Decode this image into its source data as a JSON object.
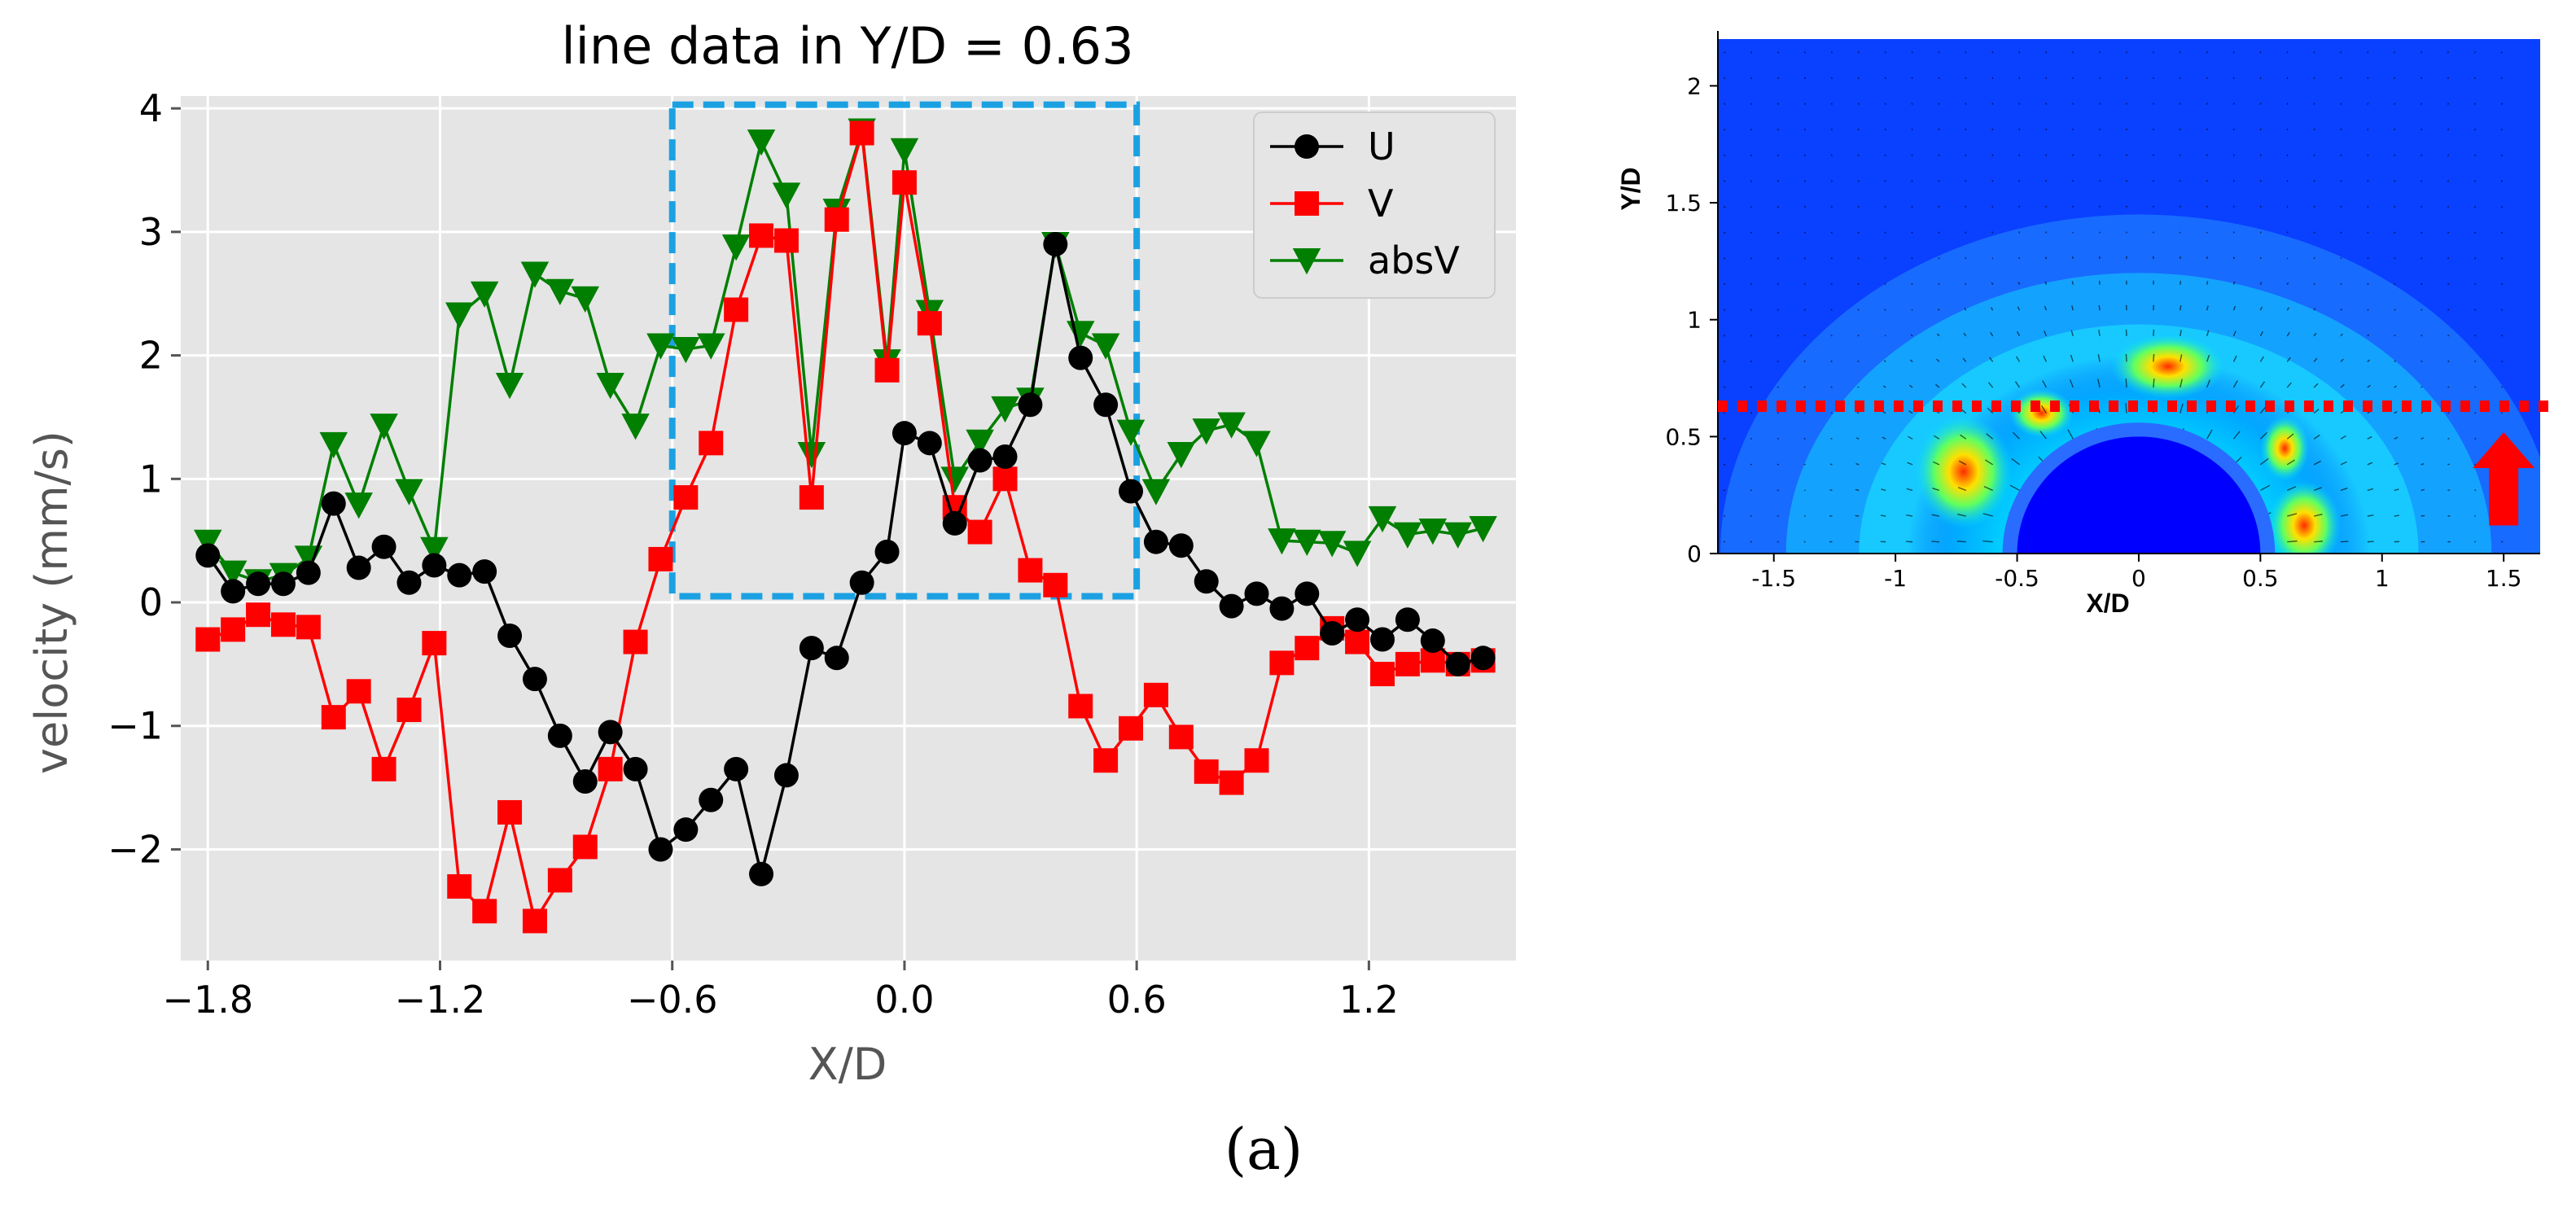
{
  "chart_data": [
    {
      "type": "line",
      "title": "line data in Y/D = 0.63",
      "xlabel": "X/D",
      "ylabel": "velocity (mm/s)",
      "xlim": [
        -1.87,
        1.58
      ],
      "ylim": [
        -2.9,
        4.1
      ],
      "xticks": [
        -1.8,
        -1.2,
        -0.6,
        0.0,
        0.6,
        1.2
      ],
      "xtick_labels": [
        "−1.8",
        "−1.2",
        "−0.6",
        "0.0",
        "0.6",
        "1.2"
      ],
      "yticks": [
        -2,
        -1,
        0,
        1,
        2,
        3,
        4
      ],
      "ytick_labels": [
        "−2",
        "−1",
        "0",
        "1",
        "2",
        "3",
        "4"
      ],
      "grid": true,
      "legend_position": "top-right",
      "x": [
        -1.8,
        -1.735,
        -1.67,
        -1.605,
        -1.54,
        -1.475,
        -1.41,
        -1.345,
        -1.28,
        -1.215,
        -1.15,
        -1.085,
        -1.02,
        -0.955,
        -0.89,
        -0.825,
        -0.76,
        -0.695,
        -0.63,
        -0.565,
        -0.5,
        -0.435,
        -0.37,
        -0.305,
        -0.24,
        -0.175,
        -0.11,
        -0.045,
        0.0,
        0.065,
        0.13,
        0.195,
        0.26,
        0.325,
        0.39,
        0.455,
        0.52,
        0.585,
        0.65,
        0.715,
        0.78,
        0.845,
        0.91,
        0.975,
        1.04,
        1.105,
        1.17,
        1.235,
        1.3,
        1.365,
        1.43,
        1.495
      ],
      "series": [
        {
          "name": "U",
          "color": "#000000",
          "marker": "circle",
          "values": [
            0.38,
            0.09,
            0.15,
            0.15,
            0.24,
            0.8,
            0.28,
            0.45,
            0.16,
            0.3,
            0.22,
            0.25,
            -0.27,
            -0.62,
            -1.08,
            -1.45,
            -1.05,
            -1.35,
            -2.0,
            -1.84,
            -1.6,
            -1.35,
            -2.2,
            -1.4,
            -0.37,
            -0.45,
            0.16,
            0.41,
            1.37,
            1.29,
            0.64,
            1.15,
            1.18,
            1.6,
            2.9,
            1.98,
            1.6,
            0.9,
            0.49,
            0.46,
            0.17,
            -0.03,
            0.07,
            -0.05,
            0.07,
            -0.25,
            -0.14,
            -0.3,
            -0.14,
            -0.31,
            -0.5,
            -0.45
          ]
        },
        {
          "name": "V",
          "color": "#ff0000",
          "marker": "square",
          "values": [
            -0.3,
            -0.22,
            -0.1,
            -0.18,
            -0.2,
            -0.93,
            -0.72,
            -1.35,
            -0.87,
            -0.33,
            -2.3,
            -2.5,
            -1.7,
            -2.58,
            -2.25,
            -1.98,
            -1.35,
            -0.32,
            0.35,
            0.85,
            1.29,
            2.37,
            2.97,
            2.93,
            0.85,
            3.1,
            3.8,
            1.88,
            3.4,
            2.26,
            0.77,
            0.57,
            1.0,
            0.26,
            0.14,
            -0.84,
            -1.28,
            -1.02,
            -0.75,
            -1.09,
            -1.37,
            -1.46,
            -1.28,
            -0.49,
            -0.37,
            -0.21,
            -0.32,
            -0.58,
            -0.5,
            -0.47,
            -0.5,
            -0.47
          ]
        },
        {
          "name": "absV",
          "color": "#007f00",
          "marker": "triangle-down",
          "values": [
            0.49,
            0.24,
            0.17,
            0.22,
            0.36,
            1.28,
            0.79,
            1.43,
            0.9,
            0.43,
            2.33,
            2.5,
            1.76,
            2.66,
            2.52,
            2.46,
            1.76,
            1.43,
            2.08,
            2.05,
            2.08,
            2.88,
            3.73,
            3.3,
            1.2,
            3.17,
            3.82,
            1.95,
            3.66,
            2.35,
            1.0,
            1.3,
            1.57,
            1.64,
            2.9,
            2.18,
            2.08,
            1.38,
            0.9,
            1.2,
            1.39,
            1.44,
            1.29,
            0.5,
            0.49,
            0.48,
            0.4,
            0.68,
            0.55,
            0.58,
            0.55,
            0.6
          ]
        }
      ]
    },
    {
      "type": "heatmap",
      "xlabel": "X/D",
      "ylabel": "Y/D",
      "xlim": [
        -1.73,
        1.65
      ],
      "ylim": [
        0,
        2.2
      ],
      "xticks": [
        -1.5,
        -1,
        -0.5,
        0,
        0.5,
        1,
        1.5
      ],
      "xtick_labels": [
        "-1.5",
        "-1",
        "-0.5",
        "0",
        "0.5",
        "1",
        "1.5"
      ],
      "yticks": [
        0,
        0.5,
        1,
        1.5,
        2
      ],
      "ytick_labels": [
        "0",
        "0.5",
        "1",
        "1.5",
        "2"
      ],
      "obstacle_radius": 0.5,
      "line_y": 0.63
    }
  ],
  "highlight": {
    "x_range": [
      -0.6,
      0.6
    ],
    "y_range": [
      0.05,
      4.03
    ],
    "color": "#1ba1e2"
  },
  "caption": "(a)",
  "colors": {
    "plot_bg": "#e5e5e5",
    "grid": "#ffffff",
    "field_low": "#0033ff",
    "red_marker": "#ff0000"
  }
}
